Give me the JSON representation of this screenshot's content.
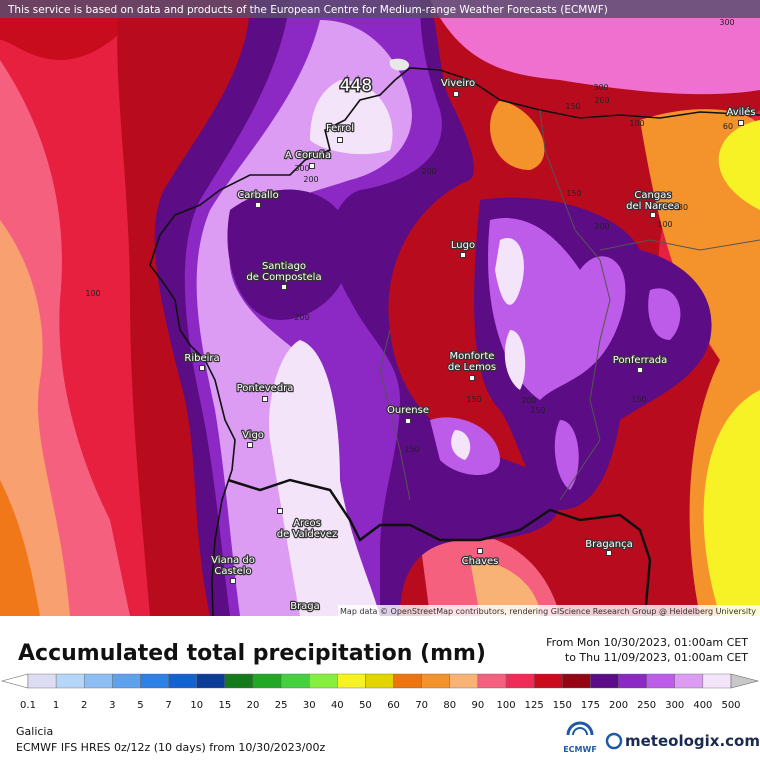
{
  "banner": "This service is based on data and products of the European Centre for Medium-range Weather Forecasts (ECMWF)",
  "map": {
    "max_label": "448",
    "cities": [
      [
        "Viveiro"
      ],
      [
        "Ferrol"
      ],
      [
        "A Coruña"
      ],
      [
        "Carballo"
      ],
      [
        "Santiago",
        "de Compostela"
      ],
      [
        "Lugo"
      ],
      [
        "Ribeira"
      ],
      [
        "Pontevedra"
      ],
      [
        "Vigo"
      ],
      [
        "Ourense"
      ],
      [
        "Monforte",
        "de Lemos"
      ],
      [
        "Arcos",
        "de Valdevez"
      ],
      [
        "Viana do",
        "Castelo"
      ],
      [
        "Braga"
      ],
      [
        "Chaves"
      ],
      [
        "Bragança"
      ],
      [
        "Ponferrada"
      ],
      [
        "Cangas",
        "del Narcea"
      ],
      [
        "Avilés"
      ]
    ],
    "contour_labels": [
      "300",
      "300",
      "200",
      "150",
      "100",
      "60",
      "300",
      "200",
      "200",
      "150",
      "200",
      "100",
      "80",
      "100",
      "200",
      "150",
      "200",
      "150",
      "150",
      "150"
    ],
    "attribution": "Map data © OpenStreetMap contributors, rendering GIScience Research Group @ Heidelberg University"
  },
  "title": "Accumulated total precipitation (mm)",
  "period": {
    "from": "From Mon 10/30/2023, 01:00am CET",
    "to": "to Thu 11/09/2023, 01:00am CET"
  },
  "legend": {
    "values": [
      0.1,
      1,
      2,
      3,
      5,
      7,
      10,
      15,
      20,
      25,
      30,
      40,
      50,
      60,
      70,
      80,
      90,
      100,
      125,
      150,
      175,
      200,
      250,
      300,
      400,
      500
    ],
    "colors": [
      "#dcdcf2",
      "#b6d6f8",
      "#8cbef4",
      "#5ea2ee",
      "#2c80e6",
      "#1462d2",
      "#0a3c98",
      "#147a1c",
      "#22a824",
      "#44d040",
      "#86ee3c",
      "#f6f226",
      "#e2d400",
      "#ee7410",
      "#f4922c",
      "#f8b276",
      "#f5607e",
      "#ee2c58",
      "#c80c1e",
      "#960414",
      "#5c0c84",
      "#8c28c4",
      "#bc5ce8",
      "#dc9cf4",
      "#f4e4fa"
    ],
    "under_color": "#ffffff",
    "over_color": "#c8c8c8"
  },
  "region": "Galicia",
  "model": "ECMWF IFS HRES 0z/12z (10 days)  from  10/30/2023/00z",
  "logos": {
    "ecmwf": "ECMWF",
    "meteologix": "meteologix.com"
  }
}
